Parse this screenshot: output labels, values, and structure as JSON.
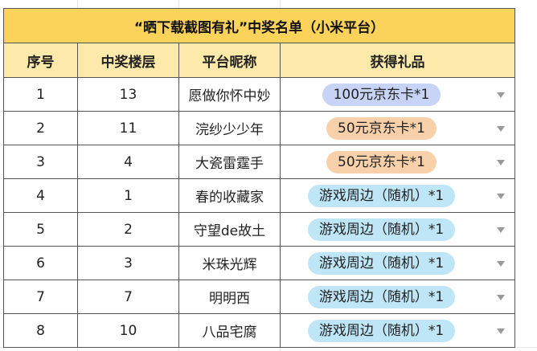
{
  "title": "“晒下载截图有礼”中奖名单（小米平台）",
  "headers": [
    "序号",
    "中奖楼层",
    "平台昵称",
    "获得礼品"
  ],
  "colors": {
    "title_bg": "#fbd25a",
    "header_bg": "#fde9a9",
    "pill_blue": "#c7d4f5",
    "pill_orange": "#f8d1aa",
    "pill_cyan": "#bfe6f7"
  },
  "rows": [
    {
      "idx": "1",
      "floor": "13",
      "name": "愿做你怀中妙",
      "prize": "100元京东卡*1",
      "prize_style": "blue"
    },
    {
      "idx": "2",
      "floor": "11",
      "name": "浣纱少少年",
      "prize": "50元京东卡*1",
      "prize_style": "orange"
    },
    {
      "idx": "3",
      "floor": "4",
      "name": "大瓷雷霆手",
      "prize": "50元京东卡*1",
      "prize_style": "orange"
    },
    {
      "idx": "4",
      "floor": "1",
      "name": "春的收藏家",
      "prize": "游戏周边（随机）*1",
      "prize_style": "cyan"
    },
    {
      "idx": "5",
      "floor": "2",
      "name": "守望de故土",
      "prize": "游戏周边（随机）*1",
      "prize_style": "cyan"
    },
    {
      "idx": "6",
      "floor": "3",
      "name": "米珠光辉",
      "prize": "游戏周边（随机）*1",
      "prize_style": "cyan"
    },
    {
      "idx": "7",
      "floor": "7",
      "name": "明明西",
      "prize": "游戏周边（随机）*1",
      "prize_style": "cyan"
    },
    {
      "idx": "8",
      "floor": "10",
      "name": "八品宅腐",
      "prize": "游戏周边（随机）*1",
      "prize_style": "cyan"
    }
  ]
}
